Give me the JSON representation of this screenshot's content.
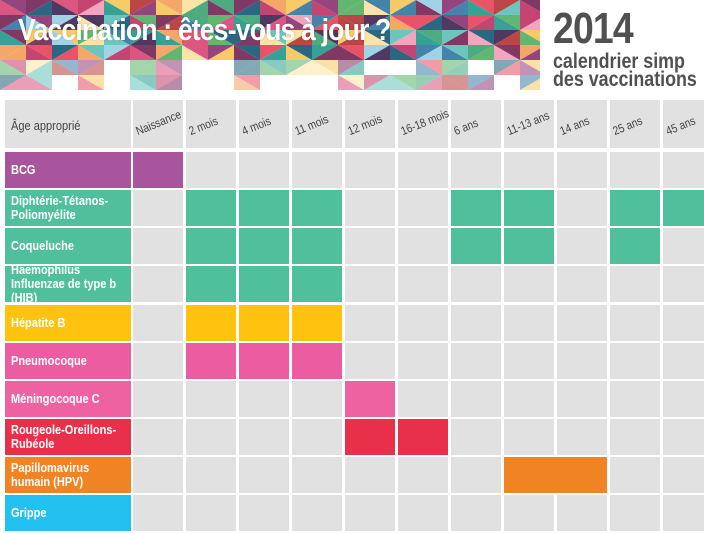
{
  "header": {
    "title": "Vaccination : êtes-vous à jour ?",
    "year": "2014",
    "subtitle_line1": "calendrier simp",
    "subtitle_line2": "des vaccinations"
  },
  "table": {
    "age_header": "Âge approprié",
    "columns": [
      "Naissance",
      "2 mois",
      "4 mois",
      "11 mois",
      "12 mois",
      "16-18 mois",
      "6 ans",
      "11-13 ans",
      "14 ans",
      "25 ans",
      "45 ans"
    ],
    "rows": [
      {
        "label": "BCG",
        "color": "#a9559e",
        "doses": [
          "Naissance"
        ]
      },
      {
        "label": "Diphtérie-Tétanos-Poliomyélite",
        "color": "#50bf9c",
        "doses": [
          "2 mois",
          "4 mois",
          "11 mois",
          "6 ans",
          "11-13 ans",
          "25 ans",
          "45 ans"
        ]
      },
      {
        "label": "Coqueluche",
        "color": "#50bf9c",
        "doses": [
          "2 mois",
          "4 mois",
          "11 mois",
          "6 ans",
          "11-13 ans",
          "25 ans"
        ]
      },
      {
        "label": "Haemophilus Influenzae de type b (HIB)",
        "color": "#50bf9c",
        "doses": [
          "2 mois",
          "4 mois",
          "11 mois"
        ]
      },
      {
        "label": "Hépatite B",
        "color": "#fec20f",
        "doses": [
          "2 mois",
          "4 mois",
          "11 mois"
        ]
      },
      {
        "label": "Pneumocoque",
        "color": "#ec5ca0",
        "doses": [
          "2 mois",
          "4 mois",
          "11 mois"
        ]
      },
      {
        "label": "Méningocoque C",
        "color": "#ef62a2",
        "doses": [
          "12 mois"
        ]
      },
      {
        "label": "Rougeole-Oreillons-Rubéole",
        "color": "#e9304a",
        "doses": [
          "12 mois",
          "16-18 mois"
        ]
      },
      {
        "label": "Papillomavirus humain (HPV)",
        "color": "#f08424",
        "doses": [
          "11-13 ans",
          "14 ans"
        ],
        "merged": true
      },
      {
        "label": "Grippe",
        "color": "#22c1f0",
        "doses": []
      }
    ],
    "empty_color": "#e1e1e2"
  }
}
